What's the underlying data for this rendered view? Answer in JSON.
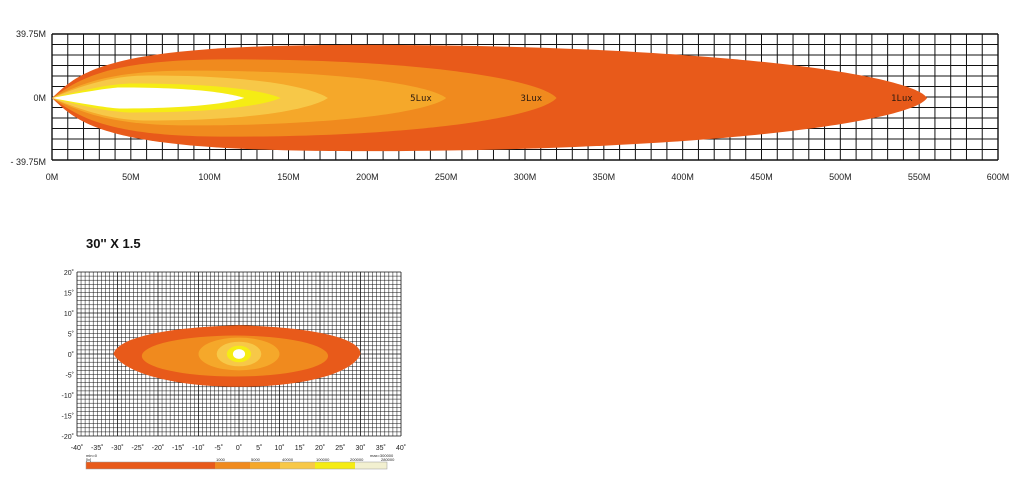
{
  "colors": {
    "grid": "#111111",
    "beam": [
      "#e85a1a",
      "#f08a1e",
      "#f5a82a",
      "#f7c848",
      "#f5ec14",
      "#ffffff"
    ]
  },
  "chart_data": [
    {
      "type": "isolux-distance",
      "unit": "M",
      "y_tick_labels": [
        "39.75M",
        "0M",
        "- 39.75M"
      ],
      "x_tick_labels": [
        "0M",
        "50M",
        "100M",
        "150M",
        "200M",
        "250M",
        "300M",
        "350M",
        "400M",
        "450M",
        "500M",
        "550M",
        "600M"
      ],
      "xlim": [
        0,
        600
      ],
      "ylim": [
        -39.75,
        39.75
      ],
      "contours": [
        {
          "label": "1Lux",
          "reach": 555
        },
        {
          "label": "3Lux",
          "reach": 320
        },
        {
          "label": "5Lux",
          "reach": 250
        },
        {
          "label": "",
          "reach": 175
        },
        {
          "label": "",
          "reach": 145
        },
        {
          "label": "",
          "reach": 122
        }
      ]
    },
    {
      "type": "isolux-angle",
      "title": "30'' X 1.5",
      "x_tick_labels": [
        "-40˚",
        "-35˚",
        "-30˚",
        "-25˚",
        "-20˚",
        "-15˚",
        "-10˚",
        "-5˚",
        "0˚",
        "5˚",
        "10˚",
        "15˚",
        "20˚",
        "25˚",
        "30˚",
        "35˚",
        "40˚"
      ],
      "y_tick_labels": [
        "20˚",
        "15˚",
        "10˚",
        "5˚",
        "0˚",
        "-5˚",
        "-10˚",
        "-15˚",
        "-20˚"
      ],
      "xlim": [
        -40,
        40
      ],
      "ylim": [
        -20,
        20
      ],
      "legend": {
        "min_label": "min=0",
        "max_label": "max=300000",
        "low_label": "[lx]",
        "steps": [
          "1000",
          "5000",
          "40000",
          "100000",
          "200000",
          "280000"
        ]
      }
    }
  ]
}
